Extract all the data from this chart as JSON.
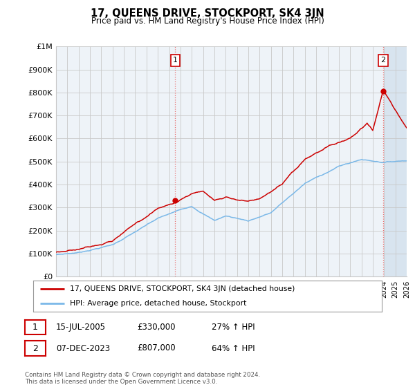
{
  "title": "17, QUEENS DRIVE, STOCKPORT, SK4 3JN",
  "subtitle": "Price paid vs. HM Land Registry's House Price Index (HPI)",
  "x_start_year": 1995,
  "x_end_year": 2026,
  "y_min": 0,
  "y_max": 1000000,
  "y_ticks": [
    0,
    100000,
    200000,
    300000,
    400000,
    500000,
    600000,
    700000,
    800000,
    900000,
    1000000
  ],
  "y_tick_labels": [
    "£0",
    "£100K",
    "£200K",
    "£300K",
    "£400K",
    "£500K",
    "£600K",
    "£700K",
    "£800K",
    "£900K",
    "£1M"
  ],
  "transaction1_year": 2005.54,
  "transaction1_price": 330000,
  "transaction1_label": "1",
  "transaction2_year": 2023.93,
  "transaction2_price": 807000,
  "transaction2_label": "2",
  "legend_line1": "17, QUEENS DRIVE, STOCKPORT, SK4 3JN (detached house)",
  "legend_line2": "HPI: Average price, detached house, Stockport",
  "annotation1_date": "15-JUL-2005",
  "annotation1_price": "£330,000",
  "annotation1_hpi": "27% ↑ HPI",
  "annotation2_date": "07-DEC-2023",
  "annotation2_price": "£807,000",
  "annotation2_hpi": "64% ↑ HPI",
  "footer": "Contains HM Land Registry data © Crown copyright and database right 2024.\nThis data is licensed under the Open Government Licence v3.0.",
  "hpi_line_color": "#7ab8e8",
  "price_line_color": "#cc0000",
  "dot_color": "#cc0000",
  "vline_color": "#e87070",
  "grid_color": "#c8c8c8",
  "bg_color": "#ffffff",
  "chart_bg_color": "#f0f4f8",
  "shade_after_year": 2024.0,
  "shade_color": "#e8eef4"
}
